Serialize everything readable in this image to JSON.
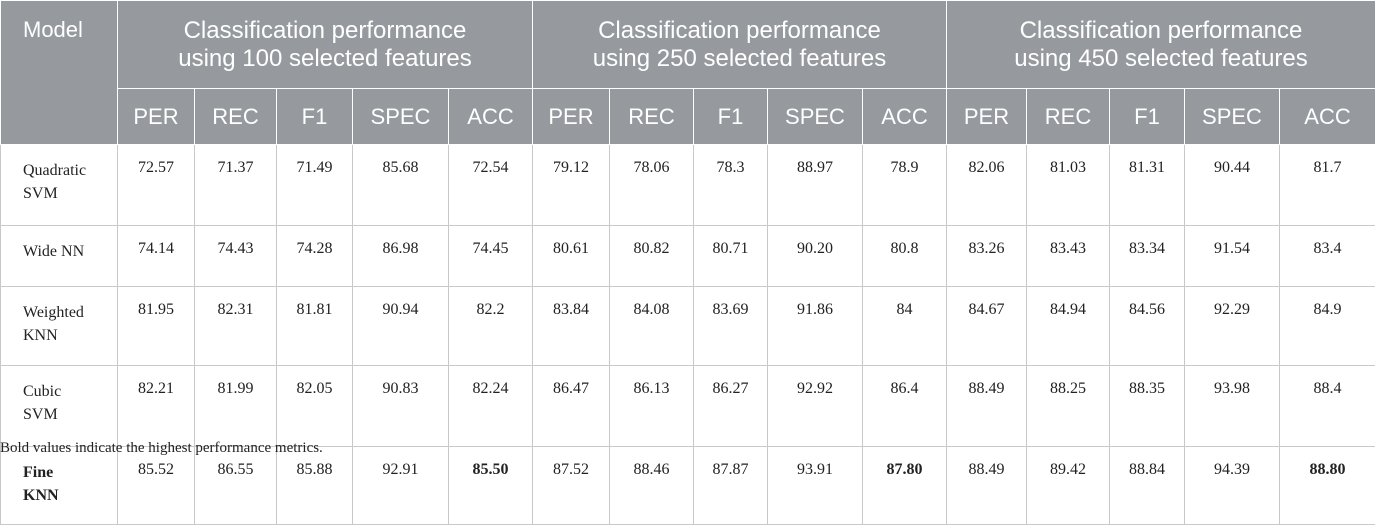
{
  "table": {
    "model_header": "Model",
    "groups": [
      {
        "line1": "Classification performance",
        "line2": "using 100 selected features"
      },
      {
        "line1": "Classification performance",
        "line2": "using 250 selected features"
      },
      {
        "line1": "Classification performance",
        "line2": "using 450 selected features"
      }
    ],
    "metrics": [
      "PER",
      "REC",
      "F1",
      "SPEC",
      "ACC"
    ],
    "rows": [
      {
        "model_line1": "Quadratic",
        "model_line2": "SVM",
        "model_bold": false,
        "values": [
          "72.57",
          "71.37",
          "71.49",
          "85.68",
          "72.54",
          "79.12",
          "78.06",
          "78.3",
          "88.97",
          "78.9",
          "82.06",
          "81.03",
          "81.31",
          "90.44",
          "81.7"
        ]
      },
      {
        "model_line1": "Wide NN",
        "model_line2": "",
        "model_bold": false,
        "values": [
          "74.14",
          "74.43",
          "74.28",
          "86.98",
          "74.45",
          "80.61",
          "80.82",
          "80.71",
          "90.20",
          "80.8",
          "83.26",
          "83.43",
          "83.34",
          "91.54",
          "83.4"
        ]
      },
      {
        "model_line1": "Weighted",
        "model_line2": "KNN",
        "model_bold": false,
        "values": [
          "81.95",
          "82.31",
          "81.81",
          "90.94",
          "82.2",
          "83.84",
          "84.08",
          "83.69",
          "91.86",
          "84",
          "84.67",
          "84.94",
          "84.56",
          "92.29",
          "84.9"
        ]
      },
      {
        "model_line1": "Cubic",
        "model_line2": "SVM",
        "model_bold": false,
        "values": [
          "82.21",
          "81.99",
          "82.05",
          "90.83",
          "82.24",
          "86.47",
          "86.13",
          "86.27",
          "92.92",
          "86.4",
          "88.49",
          "88.25",
          "88.35",
          "93.98",
          "88.4"
        ]
      },
      {
        "model_line1": "Fine",
        "model_line2": "KNN",
        "model_bold": true,
        "values": [
          "85.52",
          "86.55",
          "85.88",
          "92.91",
          "85.50",
          "87.52",
          "88.46",
          "87.87",
          "93.91",
          "87.80",
          "88.49",
          "89.42",
          "88.84",
          "94.39",
          "88.80"
        ]
      }
    ]
  },
  "footnote": "Bold values indicate the highest performance metrics."
}
